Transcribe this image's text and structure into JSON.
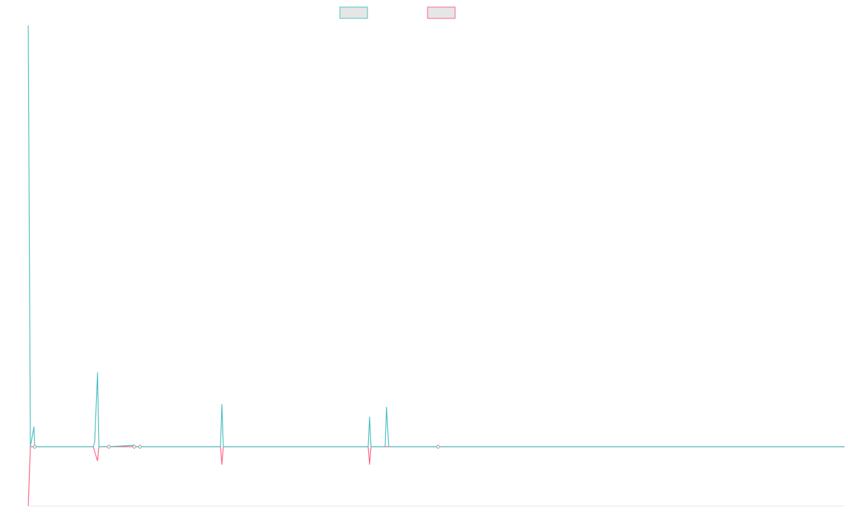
{
  "chart_data": {
    "type": "line",
    "grid": false,
    "legend_position": "top-center",
    "xlim": [
      0,
      1155
    ],
    "ylim": [
      -84,
      597
    ],
    "baseline": 0,
    "series": [
      {
        "color": "#4bc0c0",
        "fill": "#e6e6e6",
        "points": [
          [
            0,
            597
          ],
          [
            3,
            0
          ],
          [
            8,
            28
          ],
          [
            9,
            0
          ],
          [
            92,
            0
          ],
          [
            94,
            7
          ],
          [
            98,
            105
          ],
          [
            100,
            0
          ],
          [
            114,
            0
          ],
          [
            150,
            2
          ],
          [
            152,
            0
          ],
          [
            158,
            0
          ],
          [
            272,
            0
          ],
          [
            274,
            60
          ],
          [
            276,
            0
          ],
          [
            481,
            0
          ],
          [
            483,
            42
          ],
          [
            485,
            0
          ],
          [
            505,
            0
          ],
          [
            507,
            56
          ],
          [
            510,
            0
          ],
          [
            580,
            0
          ],
          [
            1155,
            0
          ]
        ]
      },
      {
        "color": "#ff6384",
        "fill": "#e6e6e6",
        "points": [
          [
            0,
            -84
          ],
          [
            3,
            0
          ],
          [
            8,
            0
          ],
          [
            9,
            0
          ],
          [
            92,
            0
          ],
          [
            94,
            -7
          ],
          [
            98,
            -20
          ],
          [
            100,
            0
          ],
          [
            114,
            0
          ],
          [
            150,
            0
          ],
          [
            152,
            0
          ],
          [
            158,
            0
          ],
          [
            272,
            0
          ],
          [
            274,
            -25
          ],
          [
            276,
            0
          ],
          [
            481,
            0
          ],
          [
            483,
            -25
          ],
          [
            485,
            0
          ],
          [
            505,
            0
          ],
          [
            507,
            0
          ],
          [
            510,
            0
          ],
          [
            580,
            0
          ],
          [
            1155,
            0
          ]
        ]
      }
    ],
    "markers": [
      9,
      114,
      150,
      158,
      580
    ]
  }
}
